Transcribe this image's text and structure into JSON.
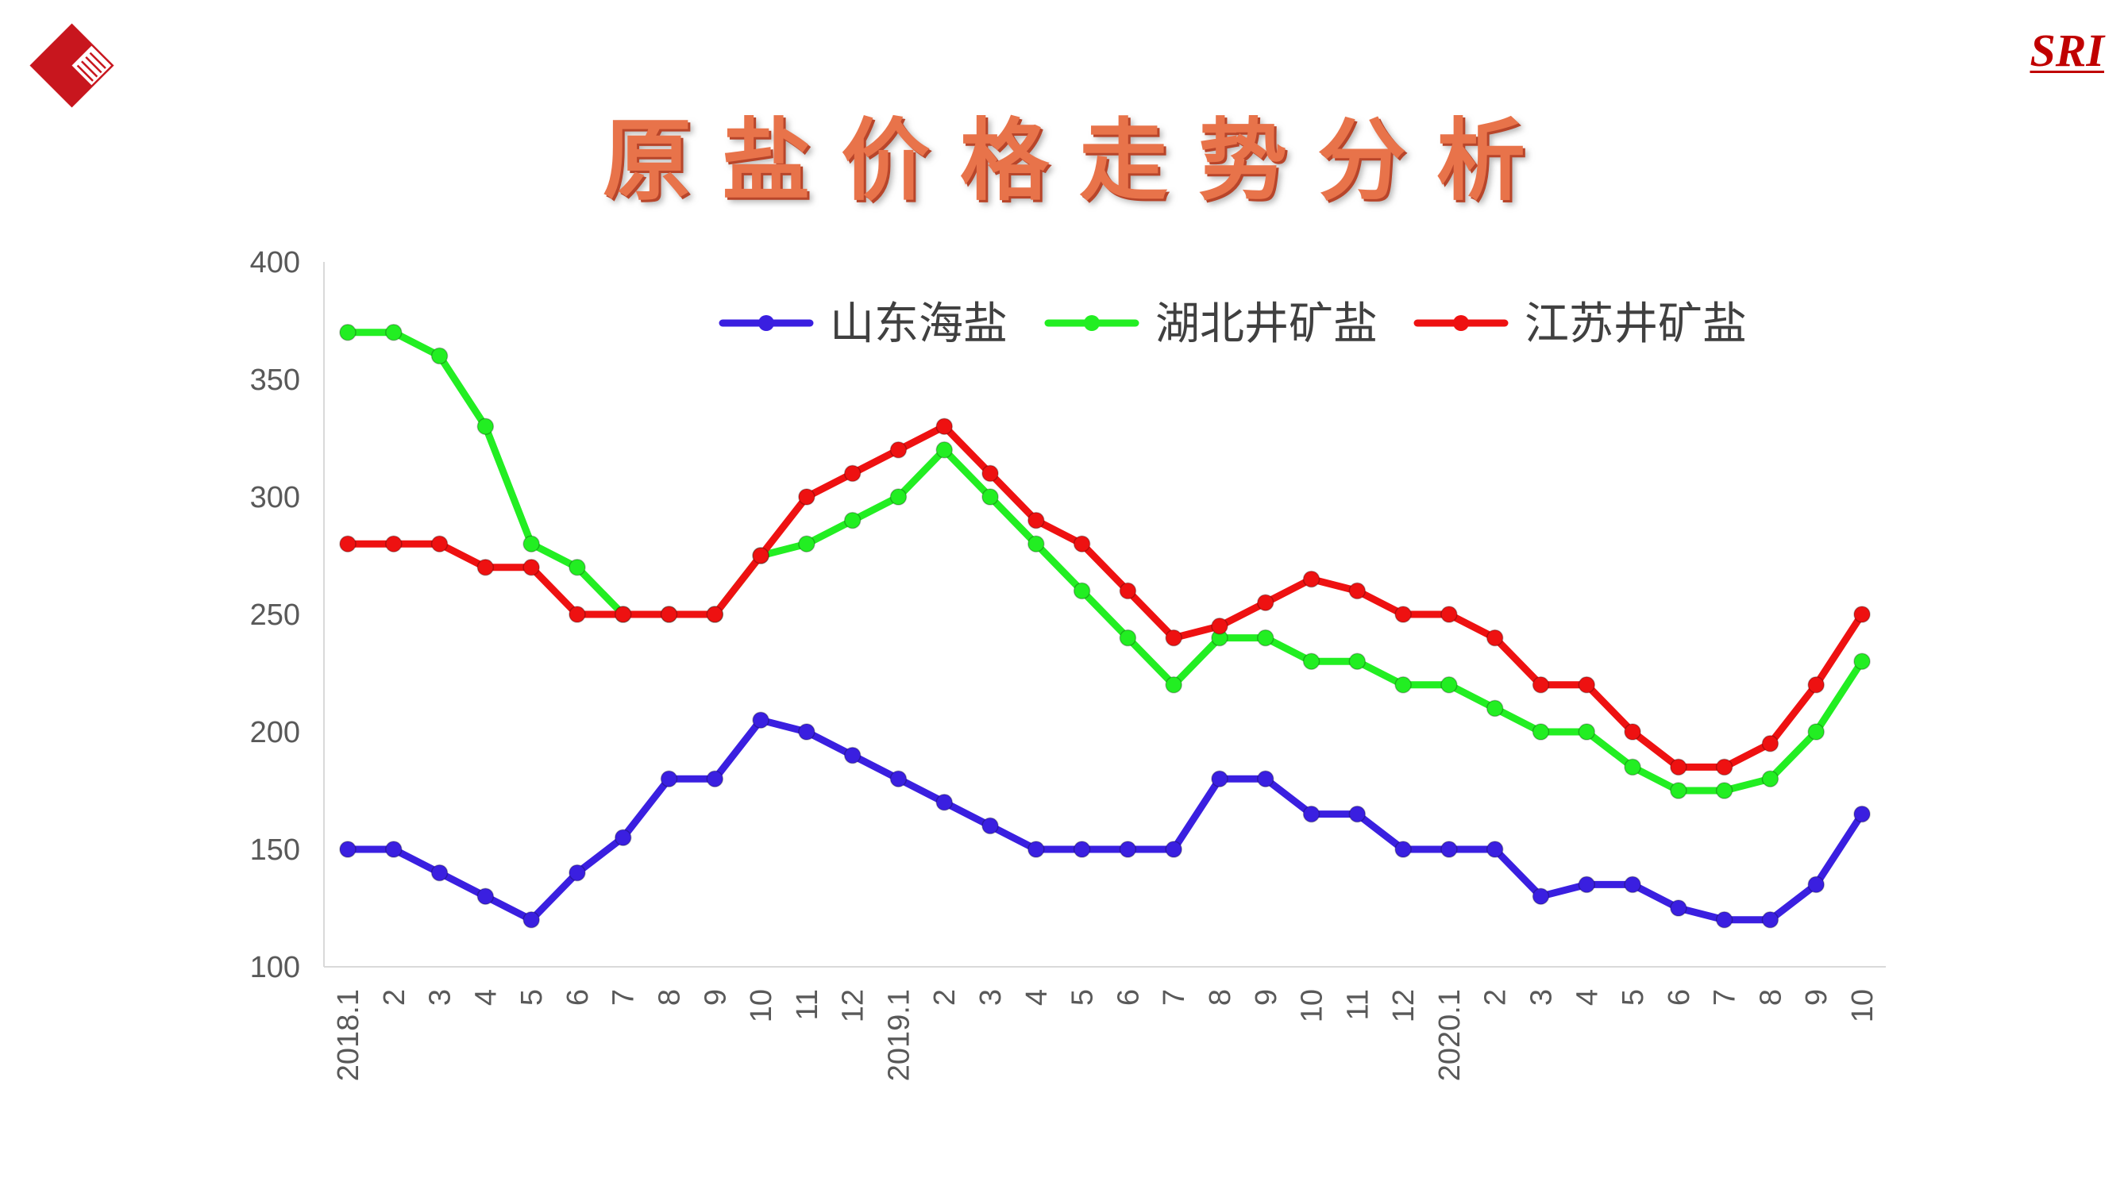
{
  "header": {
    "title": "原盐价格走势分析",
    "brand": "SRI"
  },
  "colors": {
    "title": "#e8734a",
    "brand": "#c00000",
    "logo": "#c8161e"
  },
  "logo_icon": "red-diamond-logo-icon",
  "chart_data": {
    "type": "line",
    "title": "",
    "xlabel": "",
    "ylabel": "",
    "ylim": [
      100,
      400
    ],
    "yticks": [
      100,
      150,
      200,
      250,
      300,
      350,
      400
    ],
    "grid": false,
    "legend_position": "top",
    "categories": [
      "2018.1",
      "2",
      "3",
      "4",
      "5",
      "6",
      "7",
      "8",
      "9",
      "10",
      "11",
      "12",
      "2019.1",
      "2",
      "3",
      "4",
      "5",
      "6",
      "7",
      "8",
      "9",
      "10",
      "11",
      "12",
      "2020.1",
      "2",
      "3",
      "4",
      "5",
      "6",
      "7",
      "8",
      "9",
      "10"
    ],
    "series": [
      {
        "name": "山东海盐",
        "color": "#3a1fe0",
        "values": [
          150,
          150,
          140,
          130,
          120,
          140,
          155,
          180,
          180,
          205,
          200,
          190,
          180,
          170,
          160,
          150,
          150,
          150,
          150,
          180,
          180,
          165,
          165,
          150,
          150,
          150,
          130,
          135,
          135,
          125,
          120,
          120,
          135,
          165
        ]
      },
      {
        "name": "湖北井矿盐",
        "color": "#22ee22",
        "values": [
          370,
          370,
          360,
          330,
          280,
          270,
          250,
          250,
          250,
          275,
          280,
          290,
          300,
          320,
          300,
          280,
          260,
          240,
          220,
          240,
          240,
          230,
          230,
          220,
          220,
          210,
          200,
          200,
          185,
          175,
          175,
          180,
          200,
          230
        ]
      },
      {
        "name": "江苏井矿盐",
        "color": "#ee1111",
        "values": [
          280,
          280,
          280,
          270,
          270,
          250,
          250,
          250,
          250,
          275,
          300,
          310,
          320,
          330,
          310,
          290,
          280,
          260,
          240,
          245,
          255,
          265,
          260,
          250,
          250,
          240,
          220,
          220,
          200,
          185,
          185,
          195,
          220,
          250
        ]
      }
    ]
  }
}
